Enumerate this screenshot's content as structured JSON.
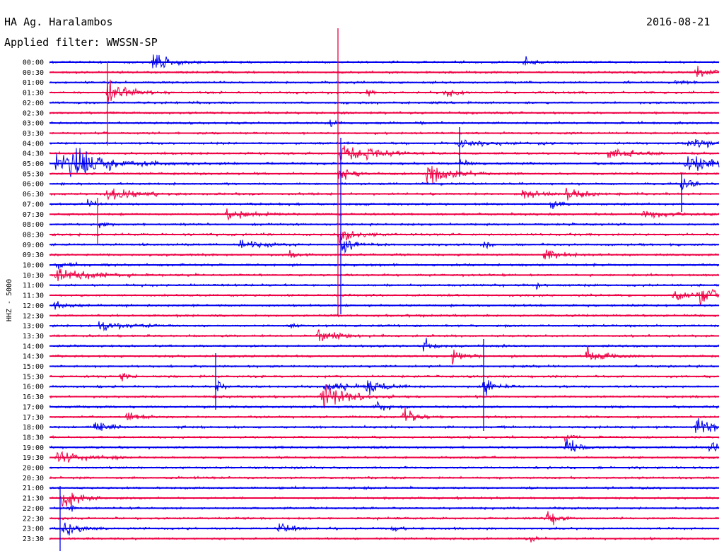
{
  "header": {
    "station": "HA Ag. Haralambos",
    "date": "2016-08-21",
    "filter_text": "Applied filter: WWSSN-SP"
  },
  "chart_data": {
    "type": "line",
    "title": "HA Ag. Haralambos",
    "date": "2016-08-21",
    "filter": "WWSSN-SP",
    "ylabel": "HHZ - 5000",
    "colors": [
      "#0000ee",
      "#ee0044"
    ],
    "time_labels": [
      "00:00",
      "00:30",
      "01:00",
      "01:30",
      "02:00",
      "02:30",
      "03:00",
      "03:30",
      "04:00",
      "04:30",
      "05:00",
      "05:30",
      "06:00",
      "06:30",
      "07:00",
      "07:30",
      "08:00",
      "08:30",
      "09:00",
      "09:30",
      "10:00",
      "10:30",
      "11:00",
      "11:30",
      "12:00",
      "12:30",
      "13:00",
      "13:30",
      "14:00",
      "14:30",
      "15:00",
      "15:30",
      "16:00",
      "16:30",
      "17:00",
      "17:30",
      "18:00",
      "18:30",
      "19:00",
      "19:30",
      "20:00",
      "20:30",
      "21:00",
      "21:30",
      "22:00",
      "22:30",
      "23:00",
      "23:30"
    ],
    "trace_minutes": 30,
    "grid": false,
    "legend": "none"
  }
}
